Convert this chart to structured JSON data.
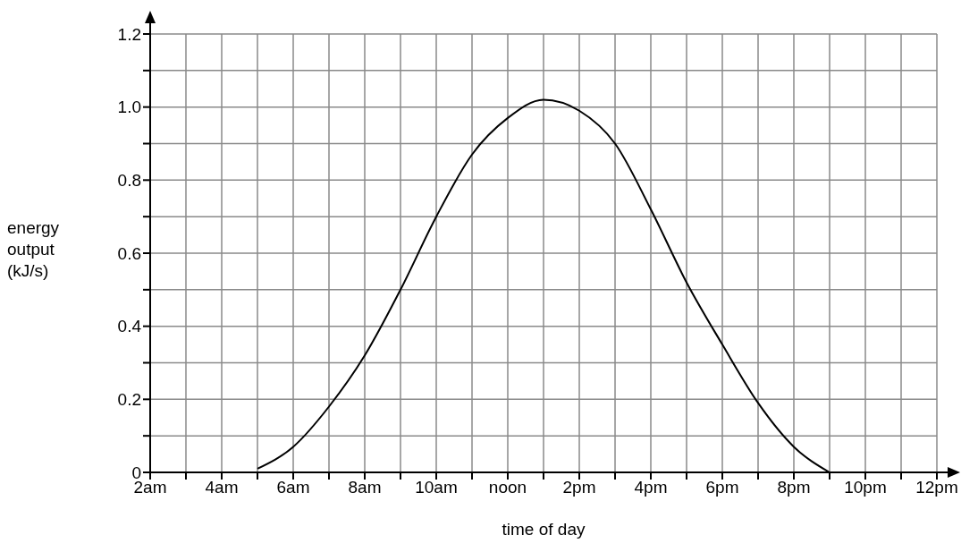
{
  "chart_data": {
    "type": "line",
    "xlabel": "time of day",
    "ylabel": "energy output (kJ/s)",
    "categories": [
      "2am",
      null,
      "4am",
      null,
      "6am",
      null,
      "8am",
      null,
      "10am",
      null,
      "noon",
      null,
      "2pm",
      null,
      "4pm",
      null,
      "6pm",
      null,
      "8pm",
      null,
      "10pm",
      null,
      "12pm"
    ],
    "series": [
      {
        "color": "#000000",
        "values": [
          null,
          null,
          null,
          0.01,
          0.07,
          0.18,
          0.32,
          0.5,
          0.7,
          0.87,
          0.97,
          1.02,
          0.99,
          0.9,
          0.72,
          0.52,
          0.35,
          0.19,
          0.07,
          0,
          null,
          null,
          null
        ]
      }
    ],
    "ylim": [
      0,
      1.2
    ],
    "yticks": [
      0,
      {
        "value": 0.1,
        "label": null
      },
      {
        "value": 0.2,
        "label": "0.2"
      },
      {
        "value": 0.3,
        "label": null
      },
      {
        "value": 0.4,
        "label": "0.4"
      },
      {
        "value": 0.5,
        "label": null
      },
      {
        "value": 0.6,
        "label": "0.6"
      },
      {
        "value": 0.7,
        "label": null
      },
      {
        "value": 0.8,
        "label": "0.8"
      },
      {
        "value": 0.9,
        "label": null
      },
      {
        "value": 1.0,
        "label": "1.0"
      },
      {
        "value": 1.1,
        "label": null
      },
      {
        "value": 1.2,
        "label": "1.2"
      }
    ],
    "grid": true,
    "marker": "none",
    "line_style": "solid"
  }
}
